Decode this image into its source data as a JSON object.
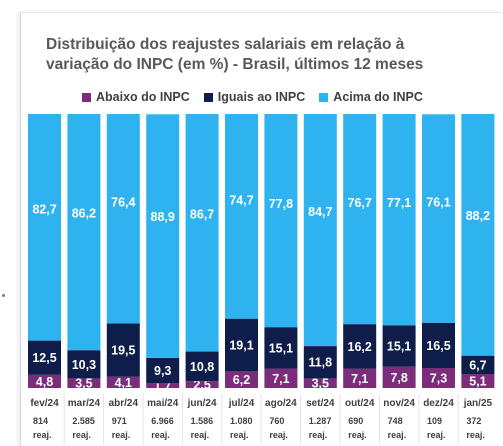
{
  "header": {
    "title_line1": "Distribuição dos reajustes salariais em relação à",
    "title_line2": "variação do INPC (em %) - Brasil, últimos 12 meses"
  },
  "legend": [
    {
      "label": "Abaixo do INPC",
      "color": "#7b2c7b"
    },
    {
      "label": "Iguais ao INPC",
      "color": "#0f1d4a"
    },
    {
      "label": "Acima do INPC",
      "color": "#2eb3f0"
    }
  ],
  "chart_data": {
    "type": "bar",
    "stacked": true,
    "title": "Distribuição dos reajustes salariais em relação à variação do INPC (em %) - Brasil, últimos 12 meses",
    "categories": [
      "fev/24",
      "mar/24",
      "abr/24",
      "mai/24",
      "jun/24",
      "jul/24",
      "ago/24",
      "set/24",
      "out/24",
      "nov/24",
      "dez/24",
      "jan/25"
    ],
    "sublabels": [
      "814 reaj.",
      "2.585 reaj.",
      "971 reaj.",
      "6.966 reaj.",
      "1.586 reaj.",
      "1.080 reaj.",
      "760 reaj.",
      "1.287 reaj.",
      "690 reaj.",
      "748 reaj.",
      "109 reaj.",
      "372 reaj."
    ],
    "series": [
      {
        "name": "Abaixo do INPC",
        "color": "#7b2c7b",
        "values": [
          4.8,
          3.5,
          4.1,
          1.7,
          2.5,
          6.2,
          7.1,
          3.5,
          7.1,
          7.8,
          7.3,
          5.1
        ]
      },
      {
        "name": "Iguais ao INPC",
        "color": "#0f1d4a",
        "values": [
          12.5,
          10.3,
          19.5,
          9.3,
          10.8,
          19.1,
          15.1,
          11.8,
          16.2,
          15.1,
          16.5,
          6.7
        ]
      },
      {
        "name": "Acima do INPC",
        "color": "#2eb3f0",
        "values": [
          82.7,
          86.2,
          76.4,
          88.9,
          86.7,
          74.7,
          77.8,
          84.7,
          76.7,
          77.1,
          76.1,
          88.2
        ]
      }
    ],
    "ylim": [
      0,
      100
    ],
    "legend_position": "top"
  }
}
